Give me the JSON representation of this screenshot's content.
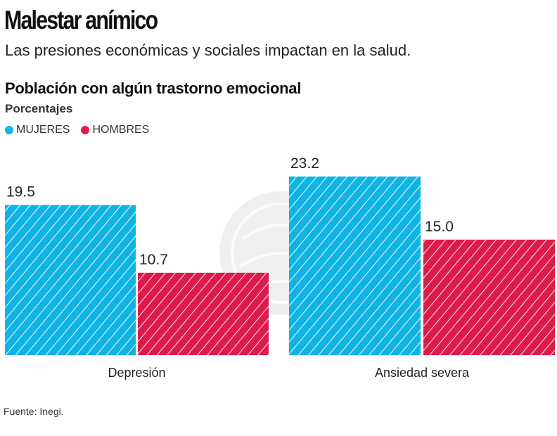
{
  "header": {
    "title": "Malestar anímico",
    "subtitle": "Las presiones económicas y sociales impactan en la salud."
  },
  "footer": {
    "source": "Fuente: Inegi."
  },
  "colors": {
    "mujeres": "#10b4e4",
    "hombres": "#de1a4a",
    "watermark": "#e9e9e9"
  },
  "chart_data": {
    "type": "bar",
    "title": "Población con algún trastorno emocional",
    "ylabel": "Porcentajes",
    "xlabel": "",
    "categories": [
      "Depresión",
      "Ansiedad severa"
    ],
    "series": [
      {
        "name": "MUJERES",
        "values": [
          19.5,
          23.2
        ],
        "labels": [
          "19.5",
          "23.2"
        ]
      },
      {
        "name": "HOMBRES",
        "values": [
          10.7,
          15.0
        ],
        "labels": [
          "10.7",
          "15.0"
        ]
      }
    ],
    "ylim": [
      0,
      23.2
    ],
    "grid": false,
    "legend": "top-left",
    "pattern": "diagonal-hatch"
  }
}
